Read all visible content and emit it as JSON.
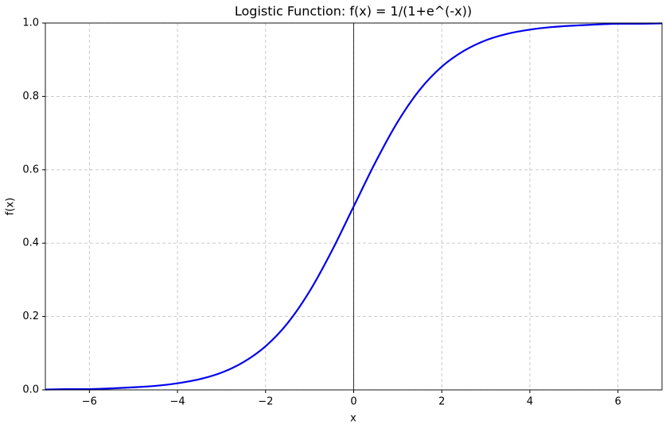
{
  "chart_data": {
    "type": "line",
    "title": "Logistic Function: f(x) = 1/(1+e^(-x))",
    "x_label": "x",
    "y_label": "f(x)",
    "x": [
      -7,
      -6.5,
      -6,
      -5.5,
      -5,
      -4.5,
      -4,
      -3.5,
      -3,
      -2.5,
      -2,
      -1.5,
      -1,
      -0.5,
      0,
      0.5,
      1,
      1.5,
      2,
      2.5,
      3,
      3.5,
      4,
      4.5,
      5,
      5.5,
      6,
      6.5,
      7
    ],
    "series": [
      {
        "color": "#0000ee",
        "values": [
          0.001,
          0.002,
          0.002,
          0.004,
          0.007,
          0.011,
          0.018,
          0.029,
          0.047,
          0.076,
          0.119,
          0.182,
          0.269,
          0.378,
          0.5,
          0.622,
          0.731,
          0.818,
          0.881,
          0.924,
          0.953,
          0.971,
          0.982,
          0.989,
          0.993,
          0.996,
          0.998,
          0.998,
          0.999
        ]
      }
    ],
    "xlim": [
      -7,
      7
    ],
    "ylim": [
      0,
      1
    ],
    "xticks": [
      {
        "value": -6,
        "label": "−6"
      },
      {
        "value": -4,
        "label": "−4"
      },
      {
        "value": -2,
        "label": "−2"
      },
      0,
      2,
      4,
      6
    ],
    "yticks": [
      {
        "value": 0,
        "label": "0.0"
      },
      0.2,
      0.4,
      0.6,
      0.8,
      {
        "value": 1,
        "label": "1.0"
      }
    ],
    "grid": true,
    "vline": 0
  }
}
